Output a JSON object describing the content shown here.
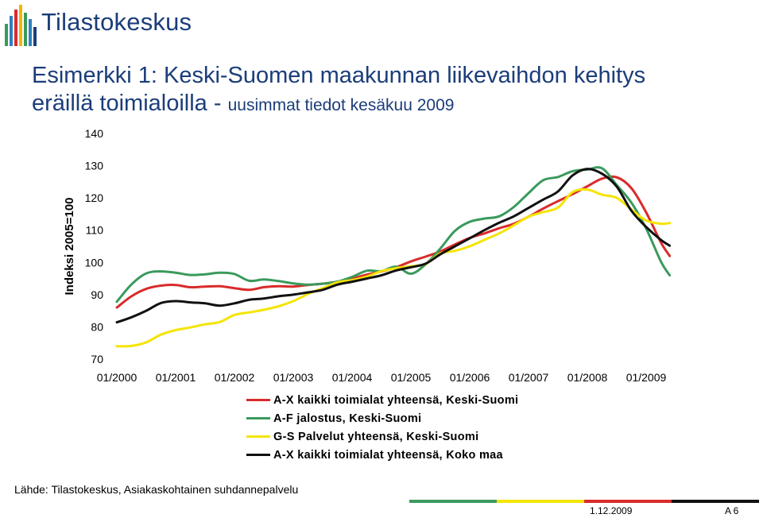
{
  "header": {
    "logo_text": "Tilastokeskus",
    "title_line1": "Esimerkki 1: Keski-Suomen maakunnan liikevaihdon kehitys",
    "title_line2_main": "eräillä toimialoilla - ",
    "title_line2_sub": "uusimmat tiedot kesäkuu 2009"
  },
  "footer": {
    "source": "Lähde: Tilastokeskus, Asiakaskohtainen suhdannepalvelu",
    "date": "1.12.2009",
    "page": "A 6",
    "bar_colors": [
      "#3a9a5c",
      "#f5e400",
      "#d92b2b",
      "#111111"
    ]
  },
  "chart_data": {
    "type": "line",
    "ylabel": "Indeksi 2005=100",
    "ylim": [
      70,
      140
    ],
    "yticks": [
      "70",
      "80",
      "90",
      "100",
      "110",
      "120",
      "130",
      "140"
    ],
    "xticks": [
      "01/2000",
      "01/2001",
      "01/2002",
      "01/2003",
      "01/2004",
      "01/2005",
      "01/2006",
      "01/2007",
      "01/2008",
      "01/2009"
    ],
    "xlim": [
      2000.0,
      2009.5
    ],
    "grid": false,
    "legend_position": "bottom",
    "x": [
      2000.0,
      2000.25,
      2000.5,
      2000.75,
      2001.0,
      2001.25,
      2001.5,
      2001.75,
      2002.0,
      2002.25,
      2002.5,
      2002.75,
      2003.0,
      2003.25,
      2003.5,
      2003.75,
      2004.0,
      2004.25,
      2004.5,
      2004.75,
      2005.0,
      2005.25,
      2005.5,
      2005.75,
      2006.0,
      2006.25,
      2006.5,
      2006.75,
      2007.0,
      2007.25,
      2007.5,
      2007.75,
      2008.0,
      2008.25,
      2008.5,
      2008.75,
      2009.0,
      2009.25,
      2009.4
    ],
    "series": [
      {
        "name": "A-X kaikki toimialat yhteensä, Keski-Suomi",
        "color": "#d92b2b",
        "values": [
          86.0,
          89.5,
          91.8,
          92.8,
          93.0,
          92.3,
          92.5,
          92.6,
          92.0,
          91.5,
          92.3,
          92.6,
          92.5,
          93.0,
          93.4,
          94.0,
          95.0,
          96.2,
          97.2,
          98.5,
          100.3,
          101.8,
          103.4,
          105.6,
          107.6,
          109.0,
          110.6,
          112.0,
          114.2,
          116.7,
          119.0,
          121.2,
          123.6,
          126.0,
          126.4,
          123.0,
          115.5,
          106.2,
          102.0
        ]
      },
      {
        "name": "A-F jalostus, Keski-Suomi",
        "color": "#3a9a5c",
        "values": [
          87.8,
          93.2,
          96.6,
          97.2,
          96.8,
          96.1,
          96.3,
          96.8,
          96.4,
          94.3,
          94.7,
          94.2,
          93.5,
          93.1,
          93.4,
          94.0,
          95.5,
          97.4,
          97.3,
          98.7,
          96.5,
          99.4,
          104.3,
          109.8,
          112.6,
          113.6,
          114.3,
          117.2,
          121.5,
          125.5,
          126.5,
          128.3,
          128.8,
          129.2,
          124.0,
          118.5,
          110.5,
          100.3,
          96.0
        ]
      },
      {
        "name": "G-S Palvelut yhteensä, Keski-Suomi",
        "color": "#f5e400",
        "values": [
          74.0,
          74.1,
          75.2,
          77.6,
          79.0,
          79.8,
          80.8,
          81.5,
          83.7,
          84.5,
          85.3,
          86.4,
          88.0,
          90.2,
          92.0,
          93.8,
          94.5,
          95.6,
          97.3,
          98.2,
          98.8,
          99.5,
          102.8,
          103.6,
          105.0,
          107.0,
          109.0,
          111.5,
          114.2,
          115.6,
          117.0,
          121.8,
          122.6,
          121.0,
          120.0,
          116.4,
          113.0,
          112.0,
          112.2
        ]
      },
      {
        "name": "A-X kaikki toimialat yhteensä, Koko maa",
        "color": "#111111",
        "values": [
          81.4,
          83.0,
          85.0,
          87.4,
          88.0,
          87.6,
          87.3,
          86.6,
          87.3,
          88.4,
          88.8,
          89.5,
          90.0,
          90.7,
          91.5,
          93.1,
          94.0,
          95.0,
          96.0,
          97.5,
          98.5,
          99.6,
          102.5,
          105.0,
          107.5,
          110.0,
          112.3,
          114.3,
          116.9,
          119.5,
          122.0,
          127.0,
          129.0,
          127.5,
          123.5,
          116.0,
          111.0,
          107.0,
          105.2
        ]
      }
    ]
  }
}
